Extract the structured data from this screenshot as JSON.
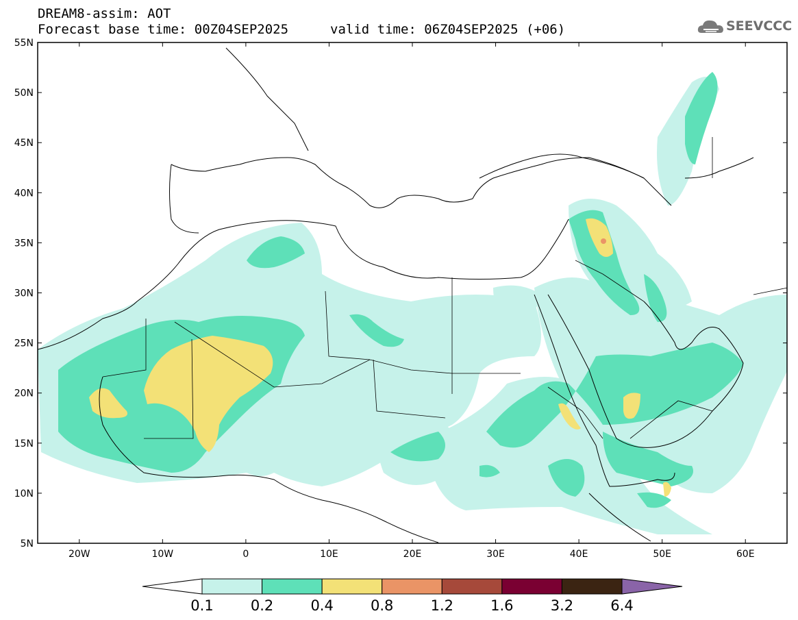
{
  "title": {
    "line1": "DREAM8-assim: AOT",
    "line2_left": "Forecast base time: 00Z04SEP2025",
    "line2_right": "valid time: 06Z04SEP2025 (+06)"
  },
  "logo": {
    "text": "SEEVCCC",
    "icon": "cloud-icon"
  },
  "map": {
    "lon_range": [
      -25,
      65
    ],
    "lat_range": [
      5,
      55
    ],
    "lat_ticks": [
      "55N",
      "50N",
      "45N",
      "40N",
      "35N",
      "30N",
      "25N",
      "20N",
      "15N",
      "10N",
      "5N"
    ],
    "lon_ticks": [
      "20W",
      "10W",
      "0",
      "10E",
      "20E",
      "30E",
      "40E",
      "50E",
      "60E"
    ]
  },
  "colorbar": {
    "labels": [
      "0.1",
      "0.2",
      "0.4",
      "0.8",
      "1.2",
      "1.6",
      "3.2",
      "6.4"
    ],
    "colors": [
      "#c6f2ea",
      "#5ee0b8",
      "#f3e177",
      "#ea9466",
      "#a6493a",
      "#7a0032",
      "#3b2412",
      "#8a64a8"
    ]
  }
}
